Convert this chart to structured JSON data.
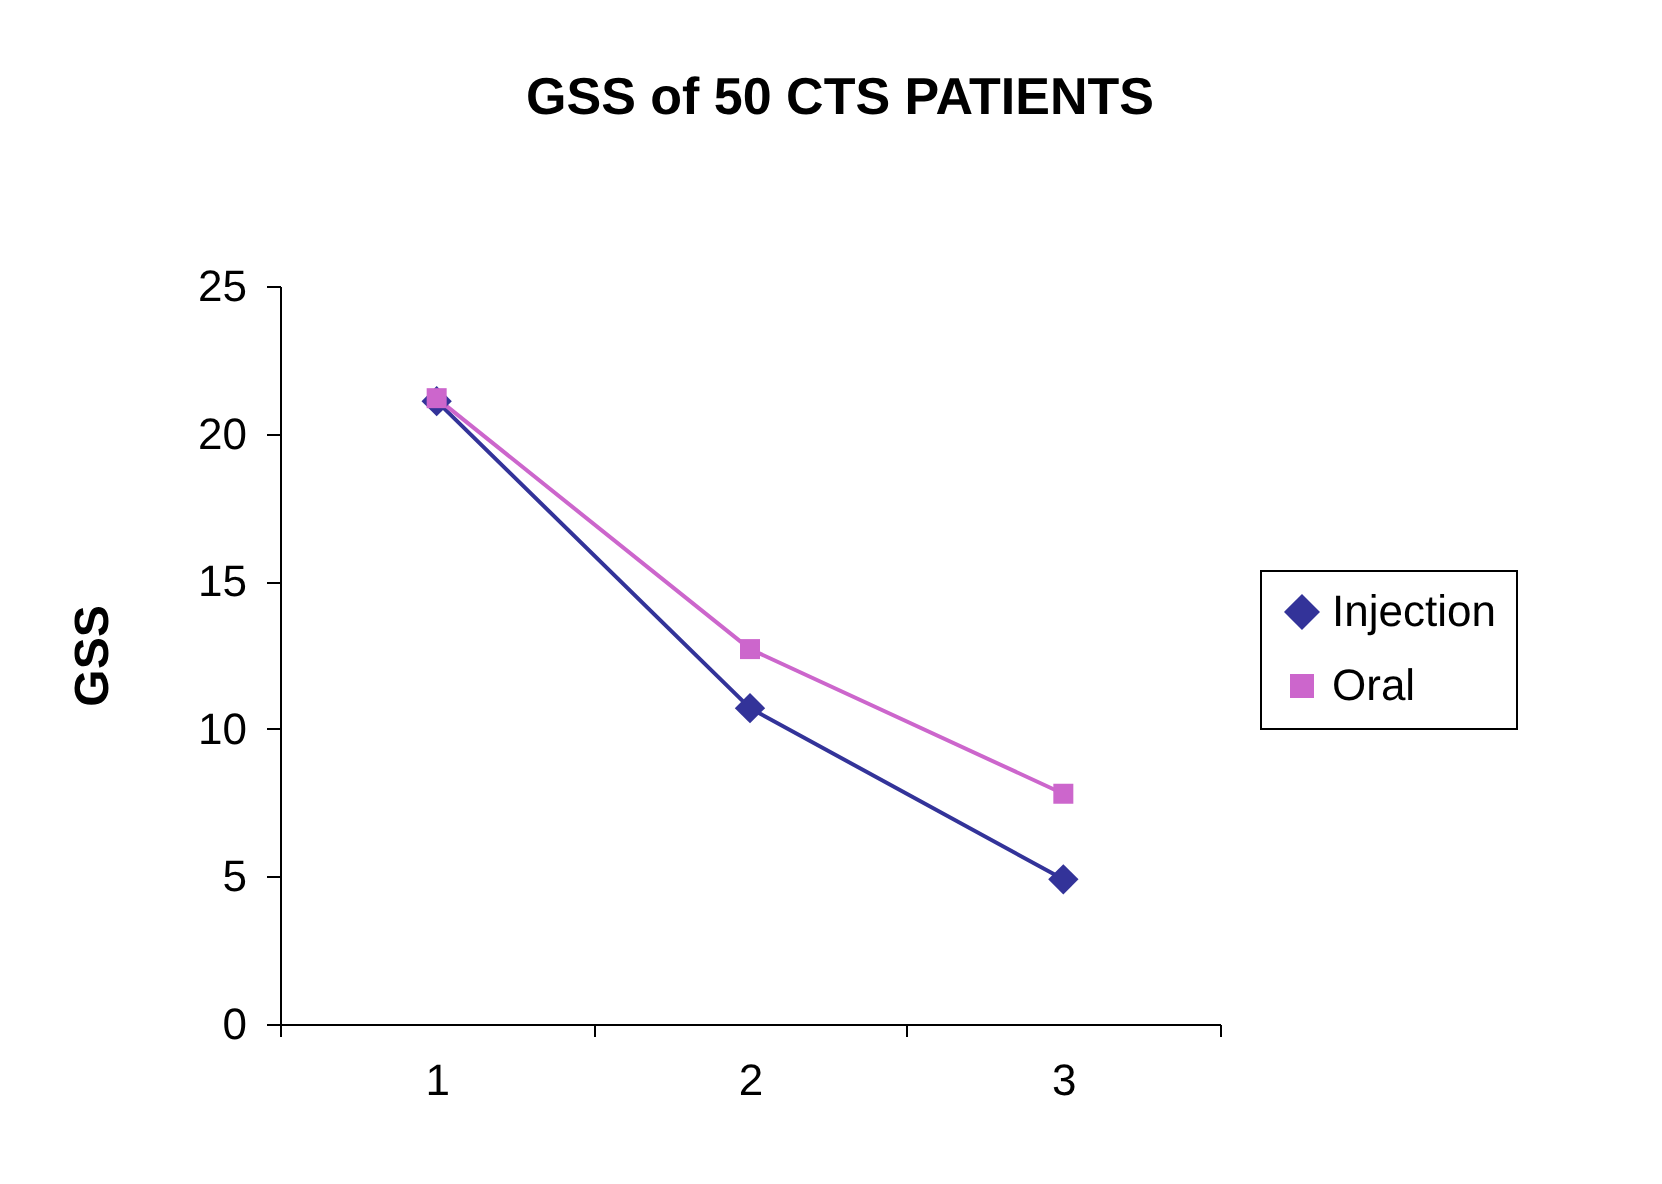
{
  "chart_data": {
    "type": "line",
    "title": "GSS of 50 CTS PATIENTS",
    "ylabel": "GSS",
    "categories": [
      "1",
      "2",
      "3"
    ],
    "series": [
      {
        "name": "Injection",
        "color": "#333399",
        "marker": "diamond",
        "values": [
          21.1,
          10.7,
          4.9
        ]
      },
      {
        "name": "Oral",
        "color": "#cc66cc",
        "marker": "square",
        "values": [
          21.2,
          12.7,
          7.8
        ]
      }
    ],
    "ylim": [
      0,
      25
    ],
    "yticks": [
      0,
      5,
      10,
      15,
      20,
      25
    ],
    "grid": false,
    "legend": "right",
    "line_style": "solid"
  }
}
